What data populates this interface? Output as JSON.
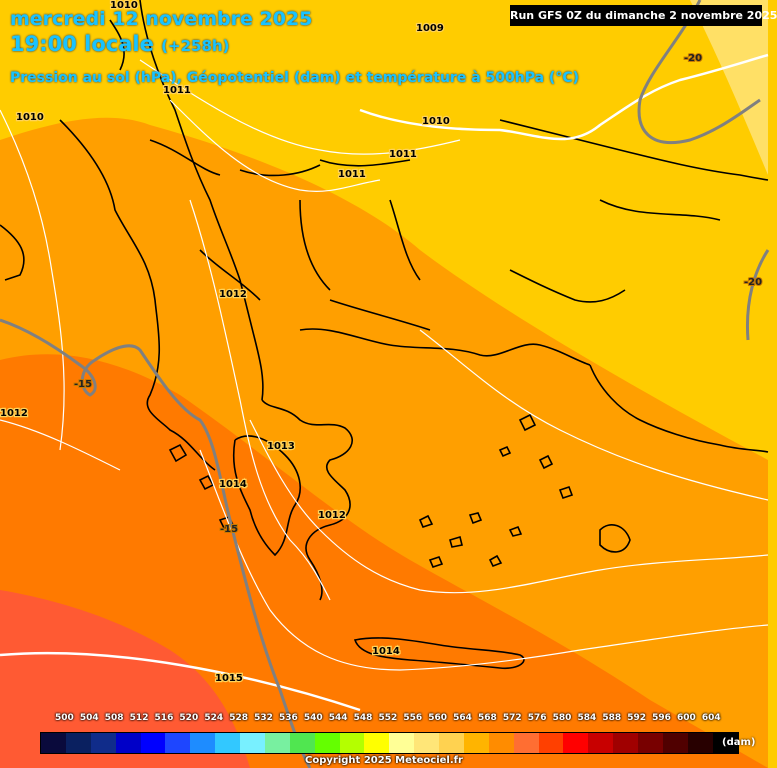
{
  "header": {
    "date": "mercredi 12 novembre 2025",
    "time": "19:00 locale",
    "offset": "(+258h)",
    "subtitle": "Pression au sol (hPa), Géopotentiel (dam) et température à 500hPa (°C)"
  },
  "run_info": "Run GFS 0Z du dimanche 2 novembre 2025",
  "map": {
    "colors": {
      "band_552": "#ffcc00",
      "band_556": "#ffe066",
      "band_560": "#ff9f00",
      "band_564": "#ff7a00",
      "band_568": "#ff5a33",
      "coastline": "#000000",
      "isobar": "#ffffff",
      "isotherm": "#808080"
    },
    "pressure_labels": [
      "1010",
      "1009",
      "1010",
      "1010",
      "1011",
      "1011",
      "1011",
      "1012",
      "1012",
      "1013",
      "1014",
      "1012",
      "1014",
      "1015"
    ],
    "temperature_labels": [
      "-20",
      "-20",
      "-15",
      "-15"
    ]
  },
  "legend": {
    "unit": "(dam)",
    "ticks": [
      "500",
      "504",
      "508",
      "512",
      "516",
      "520",
      "524",
      "528",
      "532",
      "536",
      "540",
      "544",
      "548",
      "552",
      "556",
      "560",
      "564",
      "568",
      "572",
      "576",
      "580",
      "584",
      "588",
      "592",
      "596",
      "600",
      "604"
    ],
    "colors": [
      "#0a0a3c",
      "#0a2060",
      "#102c8a",
      "#0000c8",
      "#0000ff",
      "#1e46ff",
      "#1e8cff",
      "#32c8ff",
      "#78f0ff",
      "#78f0a0",
      "#50e650",
      "#64ff00",
      "#b4ff00",
      "#ffff00",
      "#ffff96",
      "#ffe678",
      "#ffd250",
      "#ffb400",
      "#ff8c00",
      "#ff6e32",
      "#ff4000",
      "#ff0000",
      "#c80000",
      "#a00000",
      "#780000",
      "#500000",
      "#280000",
      "#000000"
    ]
  },
  "copyright": "Copyright 2025 Meteociel.fr"
}
